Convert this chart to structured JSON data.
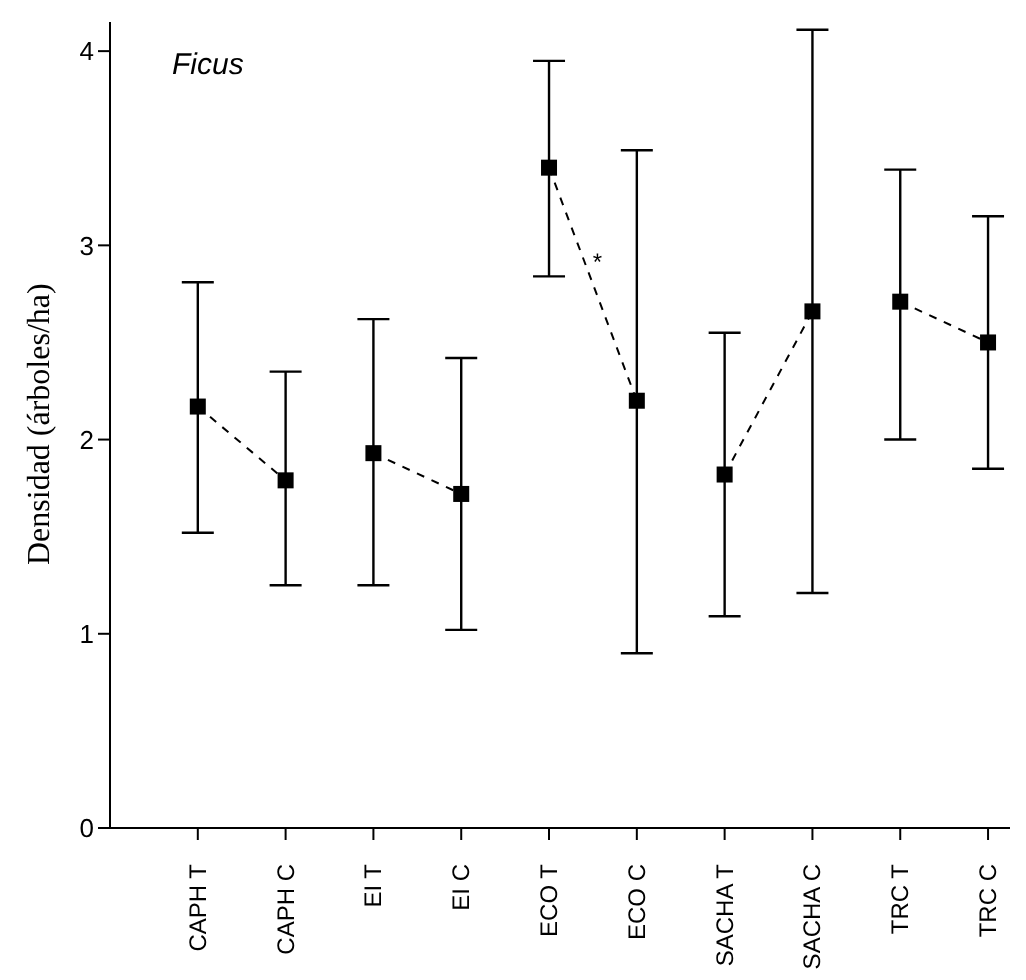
{
  "chart_data": {
    "type": "line",
    "title": "Ficus",
    "ylabel": "Densidad (árboles/ha)",
    "categories": [
      "CAPH T",
      "CAPH C",
      "EI T",
      "EI C",
      "ECO T",
      "ECO C",
      "SACHA T",
      "SACHA C",
      "TRC T",
      "TRC C"
    ],
    "series": [
      {
        "color": "#000000",
        "values": [
          2.17,
          1.79,
          null,
          null,
          null,
          null,
          null,
          null,
          null,
          null
        ],
        "errors": [
          [
            1.52,
            2.81
          ],
          [
            1.25,
            2.35
          ],
          null,
          null,
          null,
          null,
          null,
          null,
          null,
          null
        ]
      },
      {
        "color": "#000000",
        "values": [
          null,
          null,
          1.93,
          1.72,
          null,
          null,
          null,
          null,
          null,
          null
        ],
        "errors": [
          null,
          null,
          [
            1.25,
            2.62
          ],
          [
            1.02,
            2.42
          ],
          null,
          null,
          null,
          null,
          null,
          null
        ]
      },
      {
        "color": "#000000",
        "values": [
          null,
          null,
          null,
          null,
          3.4,
          2.2,
          null,
          null,
          null,
          null
        ],
        "errors": [
          null,
          null,
          null,
          null,
          [
            2.84,
            3.95
          ],
          [
            0.9,
            3.49
          ],
          null,
          null,
          null,
          null
        ]
      },
      {
        "color": "#000000",
        "values": [
          null,
          null,
          null,
          null,
          null,
          null,
          1.82,
          2.66,
          null,
          null
        ],
        "errors": [
          null,
          null,
          null,
          null,
          null,
          null,
          [
            1.09,
            2.55
          ],
          [
            1.21,
            4.11
          ],
          null,
          null
        ]
      },
      {
        "color": "#000000",
        "values": [
          null,
          null,
          null,
          null,
          null,
          null,
          null,
          null,
          2.71,
          2.5
        ],
        "errors": [
          null,
          null,
          null,
          null,
          null,
          null,
          null,
          null,
          [
            2.0,
            3.39
          ],
          [
            1.85,
            3.15
          ]
        ]
      }
    ],
    "ylim": [
      0,
      4.15
    ],
    "yticks": [
      0,
      1,
      2,
      3,
      4
    ],
    "marker": "square",
    "line_style": "dashed",
    "annotations": [
      "*"
    ]
  }
}
